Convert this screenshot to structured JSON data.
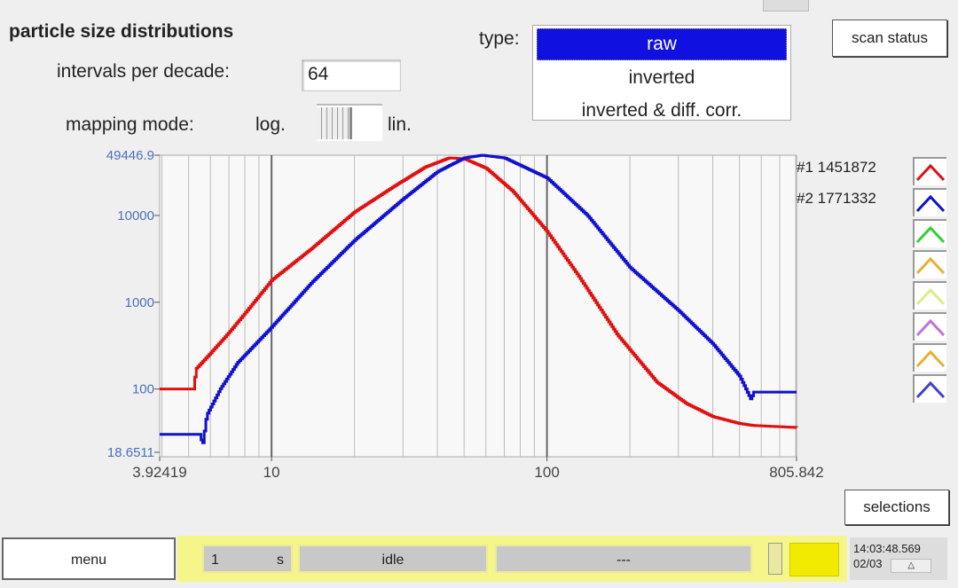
{
  "header": {
    "title": "particle size distributions",
    "intervals_label": "intervals per decade:",
    "intervals_value": "64",
    "mapping_label": "mapping mode:",
    "mapping_log": "log.",
    "mapping_lin": "lin.",
    "mapping_state": "log",
    "type_label": "type:",
    "type_options": [
      "raw",
      "inverted",
      "inverted & diff. corr."
    ],
    "type_selected": "raw"
  },
  "buttons": {
    "scan_status": "scan status",
    "selections": "selections",
    "menu": "menu"
  },
  "legend": [
    {
      "label": "#1 1451872",
      "color": "#e01010"
    },
    {
      "label": "#2 1771332",
      "color": "#1010d0"
    },
    {
      "label": "",
      "color": "#30d030"
    },
    {
      "label": "",
      "color": "#e8b030"
    },
    {
      "label": "",
      "color": "#d8f080"
    },
    {
      "label": "",
      "color": "#c070e0"
    },
    {
      "label": "",
      "color": "#e8b030"
    },
    {
      "label": "",
      "color": "#4040d0"
    }
  ],
  "status": {
    "interval_value": "1",
    "interval_unit": "s",
    "state": "idle",
    "message": "---",
    "time": "14:03:48.569",
    "date": "02/03"
  },
  "chart_data": {
    "type": "line",
    "xscale": "log",
    "yscale": "log",
    "xlim": [
      3.92419,
      805.842
    ],
    "ylim": [
      18.6511,
      49446.9
    ],
    "x_tick_labels": [
      "3.92419",
      "10",
      "100",
      "805.842"
    ],
    "y_tick_labels": [
      "49446.9",
      "10000",
      "1000",
      "100",
      "18.6511"
    ],
    "grid": true,
    "series": [
      {
        "name": "#1 1451872",
        "color": "#e01010",
        "points": [
          [
            3.924,
            100
          ],
          [
            5.2,
            100
          ],
          [
            5.3,
            170
          ],
          [
            6,
            260
          ],
          [
            7,
            450
          ],
          [
            8,
            750
          ],
          [
            10,
            1800
          ],
          [
            14,
            4200
          ],
          [
            20,
            11000
          ],
          [
            28,
            22000
          ],
          [
            36,
            36000
          ],
          [
            44,
            46000
          ],
          [
            50,
            45000
          ],
          [
            60,
            35000
          ],
          [
            75,
            19000
          ],
          [
            100,
            6500
          ],
          [
            130,
            2000
          ],
          [
            180,
            420
          ],
          [
            250,
            120
          ],
          [
            320,
            68
          ],
          [
            400,
            48
          ],
          [
            500,
            40
          ],
          [
            560,
            38
          ],
          [
            805.842,
            36
          ]
        ]
      },
      {
        "name": "#2 1771332",
        "color": "#1010d0",
        "points": [
          [
            3.924,
            30
          ],
          [
            5.5,
            30
          ],
          [
            5.6,
            22
          ],
          [
            5.8,
            50
          ],
          [
            6.5,
            100
          ],
          [
            7.5,
            200
          ],
          [
            10,
            520
          ],
          [
            14,
            1700
          ],
          [
            20,
            5200
          ],
          [
            30,
            15500
          ],
          [
            40,
            32000
          ],
          [
            50,
            46000
          ],
          [
            58,
            49400
          ],
          [
            70,
            46000
          ],
          [
            100,
            27000
          ],
          [
            140,
            10000
          ],
          [
            200,
            2500
          ],
          [
            300,
            800
          ],
          [
            400,
            330
          ],
          [
            500,
            140
          ],
          [
            550,
            75
          ],
          [
            560,
            92
          ],
          [
            805.842,
            92
          ]
        ]
      }
    ]
  }
}
